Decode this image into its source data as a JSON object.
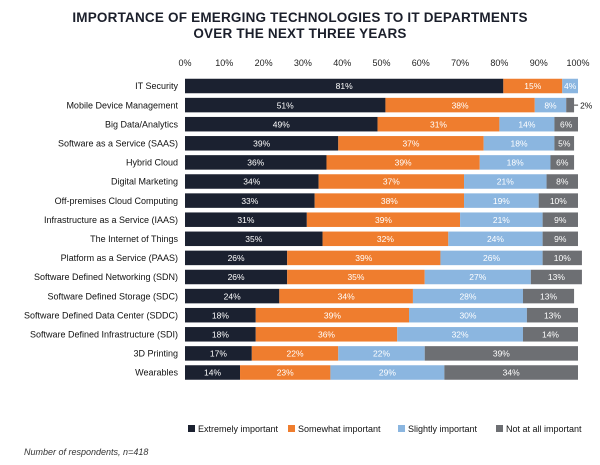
{
  "chart_data": {
    "type": "bar",
    "orientation": "horizontal",
    "stacked": true,
    "title": "IMPORTANCE OF EMERGING TECHNOLOGIES TO IT DEPARTMENTS",
    "subtitle": "OVER THE NEXT THREE YEARS",
    "x_ticks": [
      "0%",
      "10%",
      "20%",
      "30%",
      "40%",
      "50%",
      "60%",
      "70%",
      "80%",
      "90%",
      "100%"
    ],
    "xlim": [
      0,
      100
    ],
    "categories": [
      "IT Security",
      "Mobile Device Management",
      "Big Data/Analytics",
      "Software as a Service (SAAS)",
      "Hybrid Cloud",
      "Digital Marketing",
      "Off-premises Cloud Computing",
      "Infrastructure as a Service (IAAS)",
      "The Internet of Things",
      "Platform as a Service (PAAS)",
      "Software Defined Networking (SDN)",
      "Software Defined Storage (SDC)",
      "Software Defined Data Center (SDDC)",
      "Software Defined Infrastructure (SDI)",
      "3D Printing",
      "Wearables"
    ],
    "series": [
      {
        "name": "Extremely important",
        "color": "#1b2130",
        "values": [
          81,
          51,
          49,
          39,
          36,
          34,
          33,
          31,
          35,
          26,
          26,
          24,
          18,
          18,
          17,
          14
        ]
      },
      {
        "name": "Somewhat important",
        "color": "#ef7d2e",
        "values": [
          15,
          38,
          31,
          37,
          39,
          37,
          38,
          39,
          32,
          39,
          35,
          34,
          39,
          36,
          22,
          23
        ]
      },
      {
        "name": "Slightly important",
        "color": "#8bb6e0",
        "values": [
          4,
          8,
          14,
          18,
          18,
          21,
          19,
          21,
          24,
          26,
          27,
          28,
          30,
          32,
          22,
          29
        ]
      },
      {
        "name": "Not at all important",
        "color": "#6d6f73",
        "values": [
          0,
          2,
          6,
          5,
          6,
          8,
          10,
          9,
          9,
          10,
          13,
          13,
          13,
          14,
          39,
          34
        ]
      }
    ],
    "labels": [
      [
        "81%",
        "15%",
        "4%",
        ""
      ],
      [
        "51%",
        "38%",
        "8%",
        "2%"
      ],
      [
        "49%",
        "31%",
        "14%",
        "6%"
      ],
      [
        "39%",
        "37%",
        "18%",
        "5%"
      ],
      [
        "36%",
        "39%",
        "18%",
        "6%"
      ],
      [
        "34%",
        "37%",
        "21%",
        "8%"
      ],
      [
        "33%",
        "38%",
        "19%",
        "10%"
      ],
      [
        "31%",
        "39%",
        "21%",
        "9%"
      ],
      [
        "35%",
        "32%",
        "24%",
        "9%"
      ],
      [
        "26%",
        "39%",
        "26%",
        "10%"
      ],
      [
        "26%",
        "35%",
        "27%",
        "13%"
      ],
      [
        "24%",
        "34%",
        "28%",
        "13%"
      ],
      [
        "18%",
        "39%",
        "30%",
        "13%"
      ],
      [
        "18%",
        "36%",
        "32%",
        "14%"
      ],
      [
        "17%",
        "22%",
        "22%",
        "39%"
      ],
      [
        "14%",
        "23%",
        "29%",
        "34%"
      ]
    ],
    "legend_position": "bottom",
    "footnote": "Number of respondents, n=418"
  }
}
